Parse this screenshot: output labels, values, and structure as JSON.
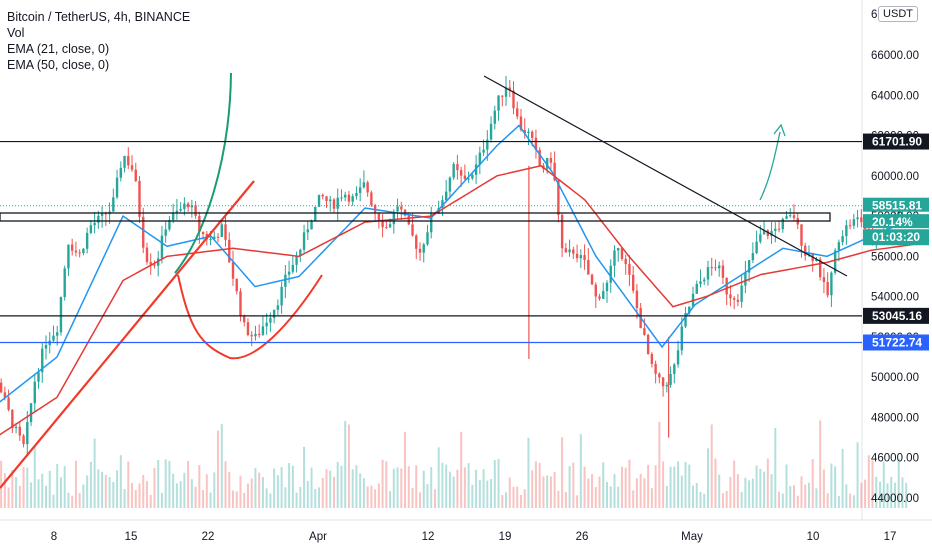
{
  "legend": {
    "title": "Bitcoin / TetherUS, 4h, BINANCE",
    "vol": "Vol",
    "ema21": "EMA (21, close, 0)",
    "ema50": "EMA (50, close, 0)"
  },
  "currency_badge": "USDT",
  "chart_data": {
    "type": "candlestick",
    "title": "Bitcoin / TetherUS, 4h, BINANCE",
    "x_ticks": [
      "8",
      "15",
      "22",
      "Apr",
      "12",
      "19",
      "26",
      "May",
      "10",
      "17"
    ],
    "y_ticks": [
      "44000.00",
      "46000.00",
      "48000.00",
      "50000.00",
      "52000.00",
      "54000.00",
      "56000.00",
      "58000.00",
      "60000.00",
      "62000.00",
      "64000.00",
      "66000.00"
    ],
    "ylim": [
      42800,
      67000
    ],
    "partial_top_tick": "6",
    "price_tags": [
      {
        "label": "61701.90",
        "value": 61701.9,
        "color": "#131722",
        "text_color": "#ffffff"
      },
      {
        "label": "58515.81",
        "value": 58515.81,
        "color": "#26a69a",
        "text_color": "#ffffff"
      },
      {
        "label": "20.14%",
        "value": 57700,
        "color": "#26a69a",
        "text_color": "#ffffff"
      },
      {
        "label": "01:03:20",
        "value": 56950,
        "color": "#26a69a",
        "text_color": "#ffffff"
      },
      {
        "label": "53045.16",
        "value": 53045.16,
        "color": "#131722",
        "text_color": "#ffffff"
      },
      {
        "label": "51722.74",
        "value": 51722.74,
        "color": "#2962ff",
        "text_color": "#ffffff"
      }
    ],
    "horizontal_levels": [
      {
        "value": 61701.9,
        "color": "#131722"
      },
      {
        "value": 53045.16,
        "color": "#131722"
      },
      {
        "value": 51722.74,
        "color": "#2962ff"
      }
    ],
    "last_price": 58515.81,
    "price_path_daily": [
      [
        1,
        48200
      ],
      [
        2,
        50800
      ],
      [
        3,
        49200
      ],
      [
        4,
        47600
      ],
      [
        5,
        46500
      ],
      [
        6,
        49900
      ],
      [
        7,
        51800
      ],
      [
        8,
        52400
      ],
      [
        9,
        56800
      ],
      [
        10,
        56000
      ],
      [
        11,
        57500
      ],
      [
        12,
        57900
      ],
      [
        13,
        58400
      ],
      [
        14,
        61100
      ],
      [
        15,
        60200
      ],
      [
        16,
        56000
      ],
      [
        17,
        55600
      ],
      [
        18,
        57800
      ],
      [
        19,
        58200
      ],
      [
        20,
        58700
      ],
      [
        21,
        57200
      ],
      [
        22,
        56800
      ],
      [
        23,
        57400
      ],
      [
        24,
        55000
      ],
      [
        25,
        52500
      ],
      [
        26,
        51900
      ],
      [
        27,
        52800
      ],
      [
        28,
        53700
      ],
      [
        29,
        55200
      ],
      [
        30,
        56200
      ],
      [
        31,
        57800
      ],
      [
        32,
        59000
      ],
      [
        33,
        58500
      ],
      [
        34,
        59200
      ],
      [
        35,
        58800
      ],
      [
        36,
        59600
      ],
      [
        37,
        58100
      ],
      [
        38,
        57400
      ],
      [
        39,
        58600
      ],
      [
        40,
        57300
      ],
      [
        41,
        56200
      ],
      [
        42,
        57900
      ],
      [
        43,
        58800
      ],
      [
        44,
        60400
      ],
      [
        45,
        59700
      ],
      [
        46,
        60300
      ],
      [
        47,
        61800
      ],
      [
        48,
        63600
      ],
      [
        49,
        64700
      ],
      [
        50,
        62500
      ],
      [
        51,
        62000
      ],
      [
        52,
        60300
      ],
      [
        53,
        60900
      ],
      [
        54,
        55900
      ],
      [
        55,
        56300
      ],
      [
        56,
        55600
      ],
      [
        57,
        53900
      ],
      [
        58,
        54600
      ],
      [
        59,
        56700
      ],
      [
        60,
        55000
      ],
      [
        61,
        52800
      ],
      [
        62,
        50500
      ],
      [
        63,
        49500
      ],
      [
        64,
        50200
      ],
      [
        65,
        52800
      ],
      [
        66,
        54300
      ],
      [
        67,
        55200
      ],
      [
        68,
        55600
      ],
      [
        69,
        54100
      ],
      [
        70,
        54000
      ],
      [
        71,
        55800
      ],
      [
        72,
        57100
      ],
      [
        73,
        57200
      ],
      [
        74,
        57700
      ],
      [
        75,
        58000
      ],
      [
        76,
        56200
      ],
      [
        77,
        55900
      ],
      [
        78,
        53900
      ],
      [
        79,
        56900
      ],
      [
        80,
        57600
      ],
      [
        81,
        57900
      ],
      [
        82,
        56800
      ],
      [
        83,
        57200
      ],
      [
        84,
        58200
      ],
      [
        85,
        58515
      ]
    ],
    "ema21_daily": [
      [
        1,
        48000
      ],
      [
        8,
        51000
      ],
      [
        14,
        58000
      ],
      [
        18,
        56500
      ],
      [
        22,
        57000
      ],
      [
        26,
        54500
      ],
      [
        30,
        55000
      ],
      [
        36,
        58400
      ],
      [
        42,
        57900
      ],
      [
        48,
        61500
      ],
      [
        50,
        62500
      ],
      [
        53,
        60200
      ],
      [
        57,
        56000
      ],
      [
        61,
        53000
      ],
      [
        63,
        51500
      ],
      [
        66,
        53600
      ],
      [
        70,
        55000
      ],
      [
        74,
        56400
      ],
      [
        78,
        56000
      ],
      [
        82,
        57000
      ],
      [
        86,
        57900
      ]
    ],
    "ema50_daily": [
      [
        1,
        46500
      ],
      [
        8,
        49000
      ],
      [
        14,
        54800
      ],
      [
        18,
        56000
      ],
      [
        24,
        56400
      ],
      [
        30,
        56000
      ],
      [
        36,
        57700
      ],
      [
        42,
        58000
      ],
      [
        48,
        60000
      ],
      [
        52,
        60500
      ],
      [
        56,
        58800
      ],
      [
        60,
        56000
      ],
      [
        64,
        53500
      ],
      [
        67,
        54000
      ],
      [
        72,
        55100
      ],
      [
        78,
        55700
      ],
      [
        82,
        56300
      ],
      [
        86,
        56600
      ]
    ]
  }
}
